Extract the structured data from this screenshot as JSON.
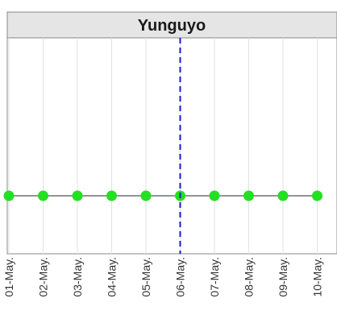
{
  "chart_data": {
    "type": "line",
    "title": "Yunguyo",
    "xlabel": "",
    "ylabel": "",
    "x": [
      "01-May.",
      "02-May.",
      "03-May.",
      "04-May.",
      "05-May.",
      "06-May.",
      "07-May.",
      "08-May.",
      "09-May.",
      "10-May."
    ],
    "values": [
      0,
      0,
      0,
      0,
      0,
      0,
      0,
      0,
      0,
      0
    ],
    "reference_line": {
      "x": "06-May.",
      "style": "dashed",
      "color": "#1a1ad6"
    },
    "grid": true,
    "colors": {
      "line": "#555555",
      "marker": "#22e022",
      "strip": "#e5e5e5",
      "grid": "#e2e2e2",
      "frame": "#888888"
    }
  }
}
